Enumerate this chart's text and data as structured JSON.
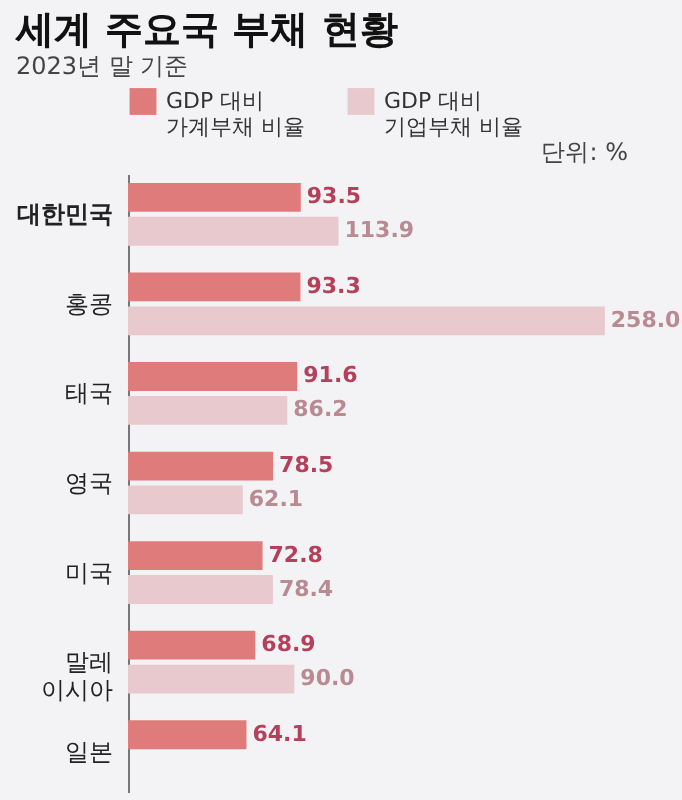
{
  "chart_data": {
    "type": "bar",
    "orientation": "horizontal",
    "title": "세계 주요국 부채 현황",
    "subtitle": "2023년 말 기준",
    "annotations": [
      "단위: %"
    ],
    "categories": [
      "대한민국",
      "홍콩",
      "태국",
      "영국",
      "미국",
      "말레\n이시아",
      "일본"
    ],
    "series": [
      {
        "name": "GDP 대비\n가계부채 비율",
        "color": "#e07b7b",
        "values": [
          93.5,
          93.3,
          91.6,
          78.5,
          72.8,
          68.9,
          64.1
        ],
        "value_labels": [
          "93.5",
          "93.3",
          "91.6",
          "78.5",
          "72.8",
          "68.9",
          "64.1"
        ]
      },
      {
        "name": "GDP 대비\n기업부채 비율",
        "color": "#e8c9cd",
        "values": [
          113.9,
          258.0,
          86.2,
          62.1,
          78.4,
          90.0,
          null
        ],
        "value_labels": [
          "113.9",
          "258.0",
          "86.2",
          "62.1",
          "78.4",
          "90.0",
          null
        ]
      }
    ],
    "legend": "top left",
    "grid": false
  }
}
